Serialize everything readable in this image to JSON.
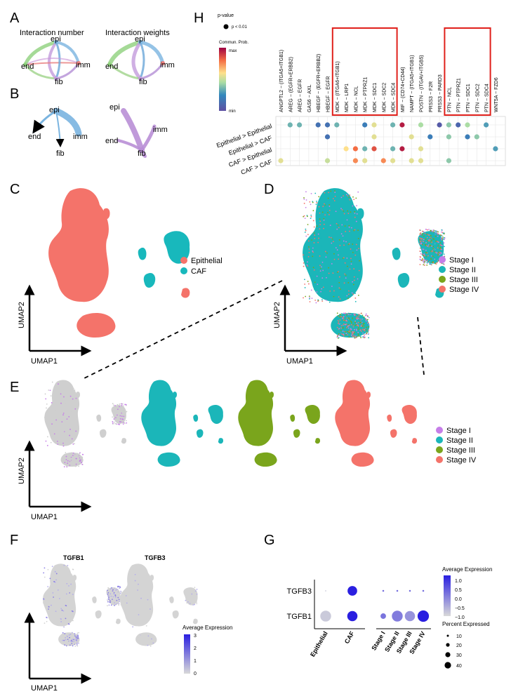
{
  "panel_labels": {
    "a": "A",
    "b": "B",
    "c": "C",
    "d": "D",
    "e": "E",
    "f": "F",
    "g": "G",
    "h": "H"
  },
  "cell_types": {
    "epi": "epi",
    "imm": "imm",
    "end": "end",
    "fib": "fib"
  },
  "panel_a": {
    "title_left": "Interaction number",
    "title_right": "Interaction weights"
  },
  "umap": {
    "x": "UMAP1",
    "y": "UMAP2"
  },
  "legend_celltype": {
    "items": [
      {
        "label": "Epithelial",
        "color": "#f4736a"
      },
      {
        "label": "CAF",
        "color": "#18b8bc"
      }
    ]
  },
  "legend_stage": {
    "items": [
      {
        "label": "Stage I",
        "color": "#c67ee8"
      },
      {
        "label": "Stage II",
        "color": "#1bb6b9"
      },
      {
        "label": "Stage III",
        "color": "#7aa51c"
      },
      {
        "label": "Stage IV",
        "color": "#f4736a"
      }
    ]
  },
  "panel_f": {
    "genes": [
      "TGFB1",
      "TGFB3"
    ],
    "legend_title": "Average Expression",
    "legend_ticks": [
      "3",
      "2",
      "1",
      "0"
    ]
  },
  "panel_h_legend": {
    "pvalue_title": "p-value",
    "pvalue_item": "p < 0.01",
    "prob_title": "Commun. Prob.",
    "max": "max",
    "min": "min"
  },
  "chart_data": [
    {
      "type": "dot",
      "title": "",
      "rows": [
        "TGFB3",
        "TGFB1"
      ],
      "columns": [
        "Epithelial",
        "CAF",
        "Stage I",
        "Stage II",
        "Stage III",
        "Stage IV"
      ],
      "legend_expression": {
        "title": "Average Expression",
        "ticks": [
          "1.0",
          "0.5",
          "0.0",
          "−0.5",
          "−1.0"
        ]
      },
      "legend_percent": {
        "title": "Percent Expressed",
        "ticks": [
          "10",
          "20",
          "30",
          "40"
        ]
      },
      "points": [
        {
          "gene": "TGFB3",
          "group": "Epithelial",
          "expr": -1.0,
          "pct": 0.5
        },
        {
          "gene": "TGFB3",
          "group": "CAF",
          "expr": 1.2,
          "pct": 30
        },
        {
          "gene": "TGFB3",
          "group": "Stage I",
          "expr": 0.2,
          "pct": 1
        },
        {
          "gene": "TGFB3",
          "group": "Stage II",
          "expr": 0.2,
          "pct": 1
        },
        {
          "gene": "TGFB3",
          "group": "Stage III",
          "expr": 0.2,
          "pct": 1
        },
        {
          "gene": "TGFB3",
          "group": "Stage IV",
          "expr": 0.2,
          "pct": 1
        },
        {
          "gene": "TGFB1",
          "group": "Epithelial",
          "expr": -1.0,
          "pct": 38
        },
        {
          "gene": "TGFB1",
          "group": "CAF",
          "expr": 1.2,
          "pct": 34
        },
        {
          "gene": "TGFB1",
          "group": "Stage I",
          "expr": 0.1,
          "pct": 10
        },
        {
          "gene": "TGFB1",
          "group": "Stage II",
          "expr": 0.0,
          "pct": 38
        },
        {
          "gene": "TGFB1",
          "group": "Stage III",
          "expr": -0.3,
          "pct": 34
        },
        {
          "gene": "TGFB1",
          "group": "Stage IV",
          "expr": 1.2,
          "pct": 42
        }
      ]
    },
    {
      "type": "dot",
      "title": "",
      "rows": [
        "Epithelial > Epithelial",
        "Epithelial > CAF",
        "CAF > Epithelial",
        "CAF > CAF"
      ],
      "columns": [
        "ANGPTL2 − (ITGA5+ITGB1)",
        "AREG − (EGFR+ERBB2)",
        "AREG − EGFR",
        "GAS6 − AXL",
        "HBEGF − (EGFR+ERBB2)",
        "HBEGF − EGFR",
        "MDK − (ITGA6+ITGB1)",
        "MDK − LRP1",
        "MDK − NCL",
        "MDK − PTPRZ1",
        "MDK − SDC1",
        "MDK − SDC2",
        "MDK − SDC4",
        "MIF − (CD74+CD44)",
        "NAMPT − (ITGA5+ITGB1)",
        "POSTN − (ITGAV+ITGB5)",
        "PRSS3 − F2R",
        "PRSS3 − PARD3",
        "PTN − NCL",
        "PTN − PTPRZ1",
        "PTN − SDC1",
        "PTN − SDC2",
        "PTN − SDC4",
        "WNT5A − FZD6"
      ],
      "points": [
        {
          "row": 0,
          "col": 1,
          "prob": 0.35
        },
        {
          "row": 0,
          "col": 2,
          "prob": 0.35
        },
        {
          "row": 0,
          "col": 4,
          "prob": 0.15
        },
        {
          "row": 0,
          "col": 5,
          "prob": 0.15
        },
        {
          "row": 0,
          "col": 6,
          "prob": 0.35
        },
        {
          "row": 0,
          "col": 9,
          "prob": 0.2
        },
        {
          "row": 0,
          "col": 10,
          "prob": 0.55
        },
        {
          "row": 0,
          "col": 12,
          "prob": 0.35
        },
        {
          "row": 0,
          "col": 13,
          "prob": 0.95
        },
        {
          "row": 0,
          "col": 15,
          "prob": 0.45
        },
        {
          "row": 0,
          "col": 17,
          "prob": 0.05
        },
        {
          "row": 0,
          "col": 18,
          "prob": 0.4
        },
        {
          "row": 0,
          "col": 19,
          "prob": 0.1
        },
        {
          "row": 0,
          "col": 20,
          "prob": 0.45
        },
        {
          "row": 0,
          "col": 22,
          "prob": 0.3
        },
        {
          "row": 1,
          "col": 5,
          "prob": 0.15
        },
        {
          "row": 1,
          "col": 10,
          "prob": 0.55
        },
        {
          "row": 1,
          "col": 14,
          "prob": 0.55
        },
        {
          "row": 1,
          "col": 16,
          "prob": 0.2
        },
        {
          "row": 1,
          "col": 18,
          "prob": 0.4
        },
        {
          "row": 1,
          "col": 20,
          "prob": 0.2
        },
        {
          "row": 1,
          "col": 21,
          "prob": 0.4
        },
        {
          "row": 2,
          "col": 7,
          "prob": 0.6
        },
        {
          "row": 2,
          "col": 8,
          "prob": 0.8
        },
        {
          "row": 2,
          "col": 9,
          "prob": 0.35
        },
        {
          "row": 2,
          "col": 10,
          "prob": 0.85
        },
        {
          "row": 2,
          "col": 12,
          "prob": 0.35
        },
        {
          "row": 2,
          "col": 13,
          "prob": 0.95
        },
        {
          "row": 2,
          "col": 15,
          "prob": 0.55
        },
        {
          "row": 2,
          "col": 23,
          "prob": 0.3
        },
        {
          "row": 3,
          "col": 0,
          "prob": 0.55
        },
        {
          "row": 3,
          "col": 5,
          "prob": 0.5
        },
        {
          "row": 3,
          "col": 8,
          "prob": 0.75
        },
        {
          "row": 3,
          "col": 9,
          "prob": 0.55
        },
        {
          "row": 3,
          "col": 11,
          "prob": 0.75
        },
        {
          "row": 3,
          "col": 12,
          "prob": 0.55
        },
        {
          "row": 3,
          "col": 14,
          "prob": 0.55
        },
        {
          "row": 3,
          "col": 15,
          "prob": 0.55
        },
        {
          "row": 3,
          "col": 18,
          "prob": 0.4
        }
      ],
      "highlight_groups": [
        [
          6,
          12
        ],
        [
          18,
          22
        ]
      ]
    }
  ]
}
